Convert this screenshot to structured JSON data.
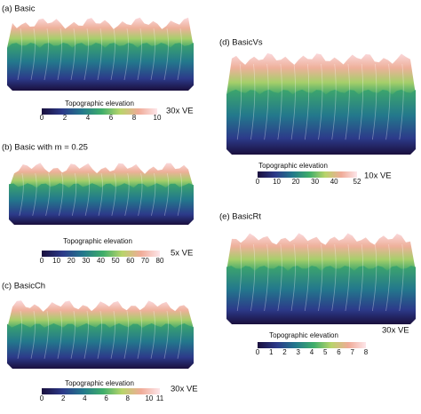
{
  "panels": [
    {
      "label": "(a) Basic",
      "colorbar_title": "Topographic elevation",
      "ticks": [
        0,
        2,
        4,
        6,
        8,
        10
      ],
      "ve": "30x VE"
    },
    {
      "label": "(b) Basic with m = 0.25",
      "colorbar_title": "Topographic elevation",
      "ticks": [
        0,
        10,
        20,
        30,
        40,
        50,
        60,
        70,
        80
      ],
      "ve": "5x VE"
    },
    {
      "label": "(c) BasicCh",
      "colorbar_title": "Topographic elevation",
      "ticks": [
        0,
        2,
        4,
        6,
        8,
        10,
        11
      ],
      "ve": "30x VE"
    },
    {
      "label": "(d) BasicVs",
      "colorbar_title": "Topographic elevation",
      "ticks": [
        0,
        10,
        20,
        30,
        40,
        52
      ],
      "ve": "10x VE"
    },
    {
      "label": "(e) BasicRt",
      "colorbar_title": "Topographic elevation",
      "ticks": [
        0,
        1,
        2,
        3,
        4,
        5,
        6,
        7,
        8
      ],
      "ve": "30x VE"
    }
  ]
}
